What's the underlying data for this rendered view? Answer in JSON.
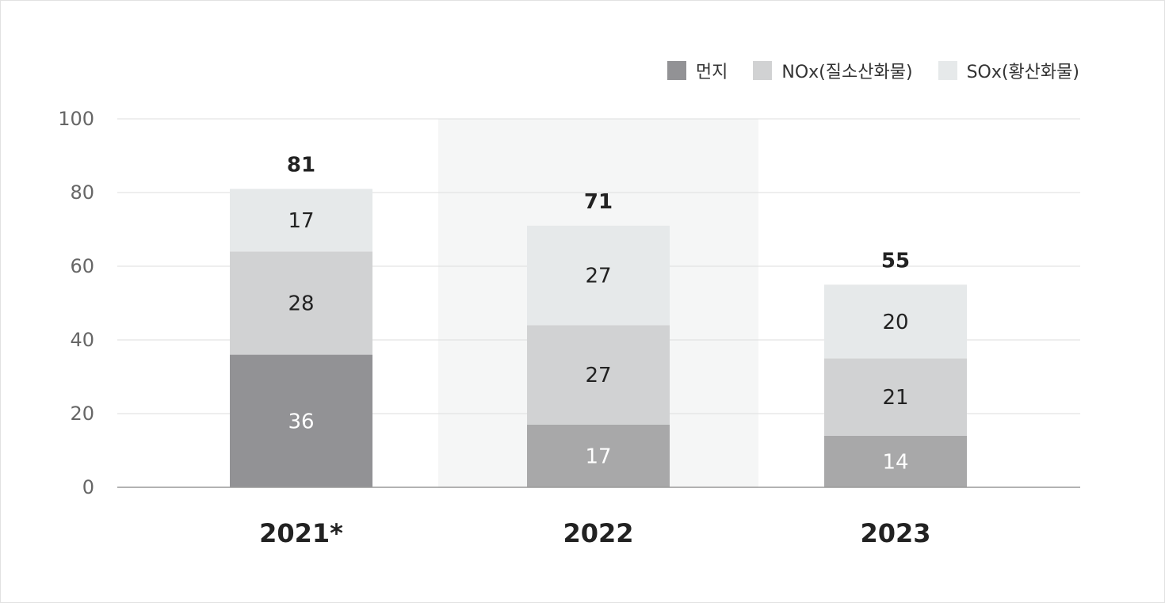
{
  "chart_data": {
    "type": "bar",
    "stacked": true,
    "categories": [
      "2021*",
      "2022",
      "2023"
    ],
    "series": [
      {
        "name": "먼지",
        "values": [
          36,
          17,
          14
        ]
      },
      {
        "name": "NOx(질소산화물)",
        "values": [
          28,
          27,
          21
        ]
      },
      {
        "name": "SOx(황산화물)",
        "values": [
          17,
          27,
          20
        ]
      }
    ],
    "totals": [
      81,
      71,
      55
    ],
    "ylim": [
      0,
      100
    ],
    "yticks": [
      0,
      20,
      40,
      60,
      80,
      100
    ],
    "grid": true,
    "legend_position": "top-right",
    "highlighted_category": "2022"
  },
  "colors": {
    "dust_2021": "#929295",
    "dust": "#a8a8a9",
    "nox": "#d1d2d3",
    "sox": "#e6e9ea",
    "highlight_band": "#f5f6f6",
    "grid": "#dddddd",
    "axis": "#999999",
    "tick_text": "#666666",
    "value_dark": "#222222",
    "value_light": "#ffffff"
  }
}
